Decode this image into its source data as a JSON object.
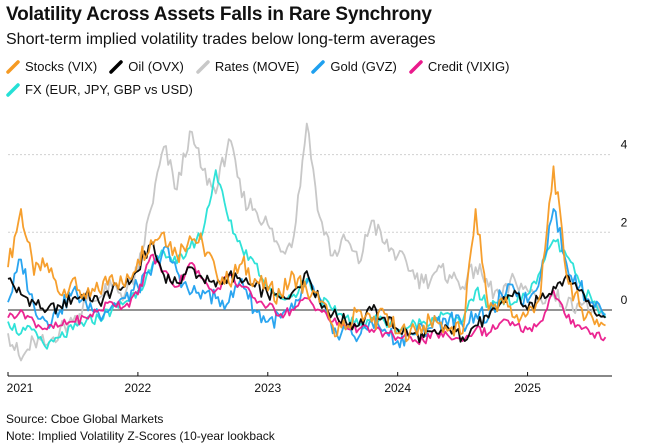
{
  "title": "Volatility Across Assets Falls in Rare Synchrony",
  "subtitle": "Short-term implied volatility trades below long-term averages",
  "source": "Source: Cboe Global Markets",
  "note": "Note: Implied Volatility Z-Scores (10-year lookback",
  "chart_data": {
    "type": "line",
    "title": "Volatility Across Assets Falls in Rare Synchrony",
    "xlabel": "",
    "ylabel": "",
    "xlim": [
      2021.0,
      2025.65
    ],
    "ylim": [
      -1.7,
      5.2
    ],
    "yticks": [
      0,
      2,
      4
    ],
    "ytick_labels": [
      "0",
      "2",
      "4"
    ],
    "xticks": [
      2021,
      2022,
      2023,
      2024,
      2025
    ],
    "xtick_labels": [
      "2021",
      "2022",
      "2023",
      "2024",
      "2025"
    ],
    "grid": true,
    "legend_position": "top",
    "x": [
      2021.0,
      2021.1,
      2021.2,
      2021.3,
      2021.4,
      2021.5,
      2021.6,
      2021.7,
      2021.8,
      2021.9,
      2022.0,
      2022.1,
      2022.2,
      2022.3,
      2022.4,
      2022.5,
      2022.6,
      2022.7,
      2022.8,
      2022.9,
      2023.0,
      2023.1,
      2023.2,
      2023.3,
      2023.4,
      2023.5,
      2023.6,
      2023.7,
      2023.8,
      2023.9,
      2024.0,
      2024.1,
      2024.2,
      2024.3,
      2024.4,
      2024.5,
      2024.6,
      2024.7,
      2024.8,
      2024.9,
      2025.0,
      2025.1,
      2025.2,
      2025.3,
      2025.4,
      2025.5,
      2025.6
    ],
    "series": [
      {
        "name": "Stocks (VIX)",
        "color": "#f59a23",
        "values": [
          1.1,
          2.6,
          0.9,
          1.2,
          0.4,
          0.8,
          0.3,
          0.5,
          0.9,
          0.6,
          1.3,
          1.8,
          2.0,
          1.4,
          1.9,
          1.7,
          1.0,
          0.7,
          1.2,
          0.8,
          0.5,
          0.4,
          0.9,
          0.5,
          0.2,
          -0.4,
          -0.5,
          0.0,
          -0.3,
          -0.1,
          -0.6,
          -0.5,
          -0.4,
          -0.3,
          -0.5,
          -0.6,
          2.6,
          0.0,
          0.3,
          -0.2,
          -0.1,
          0.4,
          3.7,
          0.9,
          0.1,
          -0.2,
          -0.4
        ]
      },
      {
        "name": "Oil (OVX)",
        "color": "#000000",
        "values": [
          0.8,
          0.4,
          0.2,
          0.0,
          0.1,
          0.3,
          0.4,
          0.2,
          0.5,
          0.6,
          1.0,
          1.7,
          0.9,
          0.7,
          1.1,
          0.8,
          0.6,
          0.9,
          0.7,
          0.6,
          0.4,
          0.3,
          0.5,
          1.0,
          0.2,
          -0.1,
          -0.3,
          -0.4,
          0.0,
          -0.2,
          -0.5,
          -0.6,
          -0.7,
          -0.6,
          -0.5,
          -0.7,
          -0.4,
          -0.2,
          0.2,
          0.5,
          0.0,
          0.3,
          0.6,
          0.9,
          0.5,
          0.1,
          -0.2
        ]
      },
      {
        "name": "Rates (MOVE)",
        "color": "#c8c8c8",
        "values": [
          -0.6,
          -1.3,
          -0.8,
          -0.9,
          -0.5,
          -0.3,
          0.2,
          0.3,
          0.6,
          0.4,
          1.0,
          2.6,
          4.2,
          3.1,
          4.6,
          3.6,
          3.0,
          4.4,
          2.9,
          2.6,
          2.2,
          1.5,
          1.9,
          4.8,
          2.4,
          1.4,
          1.8,
          1.2,
          2.3,
          1.7,
          1.4,
          1.0,
          0.7,
          1.0,
          0.9,
          0.6,
          1.1,
          0.6,
          0.3,
          0.8,
          0.5,
          0.3,
          0.4,
          0.1,
          0.2,
          0.0,
          -0.2
        ]
      },
      {
        "name": "Gold (GVZ)",
        "color": "#1fa0ef",
        "values": [
          0.2,
          1.3,
          0.1,
          -0.3,
          0.0,
          0.5,
          0.2,
          -0.1,
          0.1,
          0.3,
          0.6,
          0.9,
          1.6,
          1.0,
          0.4,
          0.5,
          0.3,
          0.2,
          0.8,
          0.0,
          -0.3,
          -0.2,
          0.0,
          0.7,
          0.3,
          -0.6,
          -0.5,
          -0.7,
          -0.3,
          -0.5,
          -0.8,
          -0.6,
          -0.5,
          -0.3,
          -0.2,
          -0.4,
          -0.1,
          -0.2,
          0.4,
          0.5,
          0.2,
          0.9,
          2.6,
          1.2,
          0.6,
          0.2,
          -0.1
        ]
      },
      {
        "name": "Credit (VIXIG)",
        "color": "#ea1a8c",
        "values": [
          -0.2,
          0.0,
          -0.3,
          -0.5,
          -0.4,
          -0.3,
          -0.2,
          0.0,
          0.2,
          0.1,
          0.4,
          1.4,
          1.0,
          0.6,
          1.2,
          0.8,
          0.5,
          0.9,
          0.6,
          0.3,
          0.1,
          -0.1,
          0.0,
          0.3,
          0.0,
          -0.3,
          -0.4,
          -0.5,
          -0.5,
          -0.6,
          -0.7,
          -0.7,
          -0.8,
          -0.6,
          -0.7,
          -0.8,
          -0.5,
          -0.6,
          -0.3,
          -0.4,
          -0.5,
          -0.3,
          0.5,
          -0.2,
          -0.4,
          -0.6,
          -0.7
        ]
      },
      {
        "name": "FX (EUR, JPY, GBP vs USD)",
        "color": "#25e0d6",
        "values": [
          -0.3,
          -0.6,
          -0.5,
          -1.0,
          -0.7,
          -0.5,
          -0.3,
          -0.2,
          0.0,
          0.2,
          0.5,
          1.0,
          1.5,
          1.2,
          1.6,
          2.0,
          3.6,
          2.3,
          1.6,
          1.2,
          0.6,
          0.3,
          0.4,
          0.8,
          0.3,
          0.0,
          -0.2,
          -0.4,
          -0.2,
          -0.3,
          -0.5,
          -0.4,
          -0.3,
          -0.2,
          -0.1,
          -0.3,
          0.5,
          0.1,
          0.3,
          0.2,
          0.4,
          1.0,
          1.8,
          1.4,
          0.7,
          0.2,
          -0.2
        ]
      }
    ]
  }
}
